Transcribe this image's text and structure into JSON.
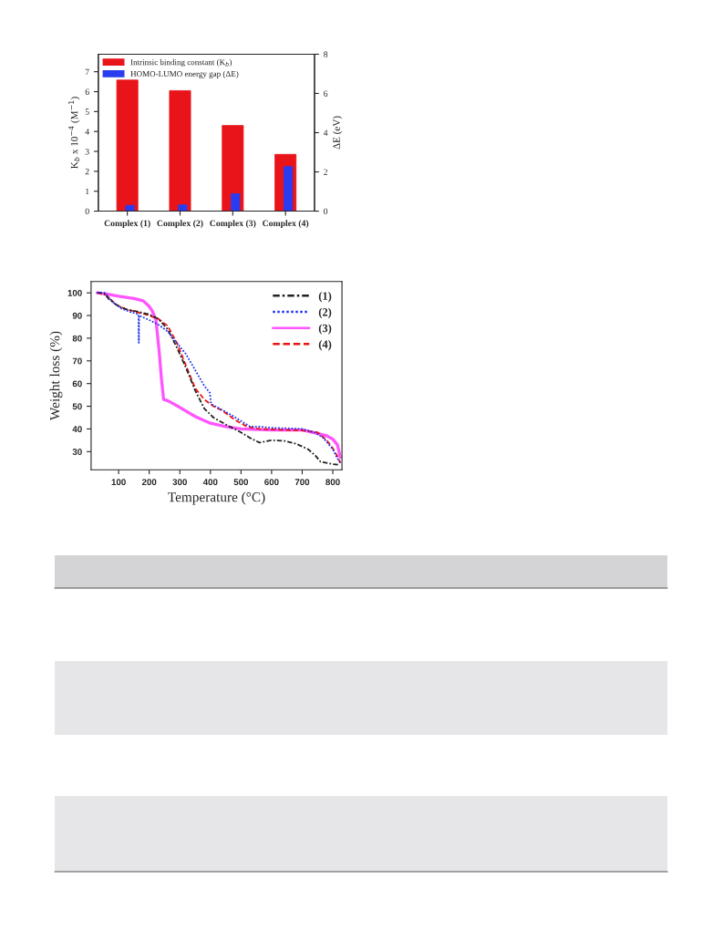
{
  "chart_data": [
    {
      "type": "bar",
      "categories": [
        "Complex (1)",
        "Complex (2)",
        "Complex (3)",
        "Complex (4)"
      ],
      "series": [
        {
          "name": "Intrinsic binding constant (K$_{b}$)",
          "color": "#e8141a",
          "values": [
            6.58,
            6.05,
            4.3,
            2.85
          ]
        },
        {
          "name": "HOMO-LUMO energy gap (ΔE)",
          "color": "#2a3cf0",
          "values": [
            0.29,
            0.32,
            0.88,
            2.27
          ],
          "axis": "y2"
        }
      ],
      "ylim": [
        0,
        7.88
      ],
      "yticks": [
        0,
        1,
        2,
        3,
        4,
        5,
        6,
        7
      ],
      "y2lim": [
        0,
        8
      ],
      "y2ticks": [
        0,
        2,
        4,
        6,
        8
      ],
      "ylabel": "K$_{b}$ x 10$^{−4}$ (M$^{−1}$)",
      "y2label": "ΔE (eV)",
      "legend": "top left"
    },
    {
      "type": "line",
      "xlabel": "Temperature (°C)",
      "ylabel": "Weight loss (%)",
      "xlim": [
        10,
        830
      ],
      "xticks": [
        100,
        200,
        300,
        400,
        500,
        600,
        700,
        800
      ],
      "ylim": [
        22,
        105
      ],
      "yticks": [
        30,
        40,
        50,
        60,
        70,
        80,
        90,
        100
      ],
      "legend": "top right",
      "series": [
        {
          "name": "(1)",
          "color": "#222222",
          "line_style": "dashdot",
          "x": [
            30,
            50,
            70,
            100,
            130,
            170,
            200,
            230,
            260,
            290,
            320,
            350,
            380,
            410,
            450,
            500,
            530,
            560,
            600,
            640,
            680,
            720,
            745,
            760,
            800,
            820
          ],
          "values": [
            100,
            100,
            97,
            94,
            92.5,
            91.5,
            90.5,
            88.5,
            84,
            76,
            67,
            57,
            49,
            45,
            42,
            38.5,
            36,
            34,
            35,
            34.8,
            33.5,
            31,
            28,
            25.5,
            24.5,
            24.2
          ]
        },
        {
          "name": "(2)",
          "color": "#2233ee",
          "line_style": "dotted",
          "x": [
            30,
            55,
            80,
            110,
            140,
            165,
            166,
            167,
            200,
            230,
            260,
            290,
            320,
            350,
            380,
            398,
            402,
            430,
            470,
            500,
            530,
            560,
            600,
            650,
            700,
            740,
            770,
            800,
            815,
            825
          ],
          "values": [
            100,
            100,
            96,
            93,
            91.5,
            90.5,
            78,
            90,
            88,
            86,
            83,
            78,
            73,
            66,
            59,
            56,
            51,
            49,
            46,
            43.5,
            41,
            41,
            40.5,
            40.3,
            40,
            38.5,
            36,
            31,
            27,
            25
          ]
        },
        {
          "name": "(3)",
          "color": "#ff55ff",
          "line_style": "solid",
          "x": [
            30,
            60,
            100,
            150,
            180,
            200,
            210,
            222,
            232,
            240,
            247,
            260,
            300,
            350,
            400,
            450,
            500,
            600,
            700,
            750,
            780,
            800,
            815,
            825
          ],
          "values": [
            100,
            99.5,
            98.5,
            97.5,
            96.5,
            94,
            92,
            88,
            75,
            62,
            53,
            52.5,
            49.5,
            45.5,
            42.5,
            41,
            40,
            39.5,
            39.5,
            38,
            37,
            35.5,
            33,
            27.5
          ]
        },
        {
          "name": "(4)",
          "color": "#ee1111",
          "line_style": "dashed",
          "x": [
            30,
            60,
            90,
            120,
            160,
            200,
            230,
            260,
            290,
            320,
            350,
            380,
            410,
            440,
            480,
            520,
            560,
            650,
            700,
            750,
            780,
            800,
            815,
            825
          ],
          "values": [
            100,
            99,
            95,
            93,
            91.5,
            90,
            88.5,
            85.5,
            78,
            68,
            58,
            53,
            50,
            48,
            44,
            41,
            40,
            39.5,
            39.3,
            38.5,
            35,
            31.5,
            28,
            25
          ]
        }
      ]
    }
  ]
}
